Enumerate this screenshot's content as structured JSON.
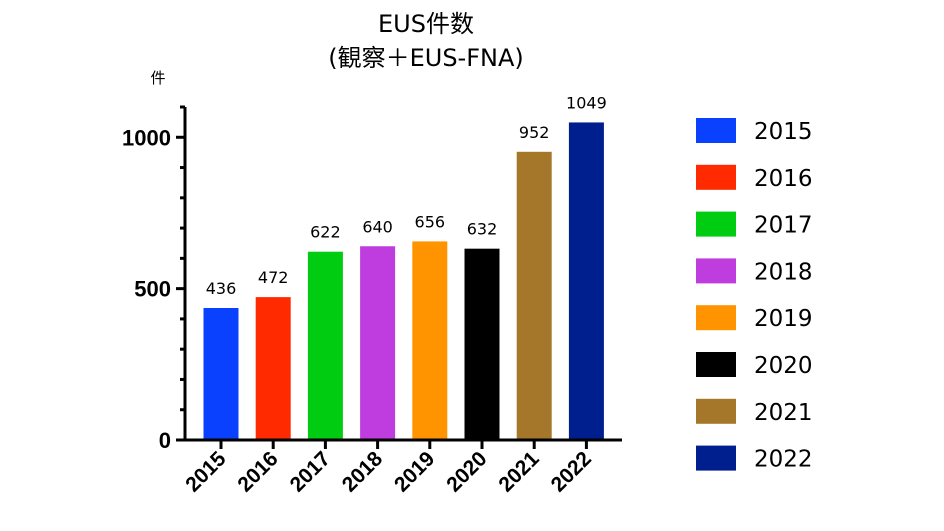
{
  "chart_data": {
    "type": "bar",
    "title_line1": "EUS件数",
    "title_line2": "(観察＋EUS-FNA)",
    "y_unit": "件",
    "categories": [
      "2015",
      "2016",
      "2017",
      "2018",
      "2019",
      "2020",
      "2021",
      "2022"
    ],
    "values": [
      436,
      472,
      622,
      640,
      656,
      632,
      952,
      1049
    ],
    "colors": [
      "#0a41ff",
      "#ff2a00",
      "#00cc11",
      "#bf3ddf",
      "#ff9300",
      "#000000",
      "#a5772b",
      "#001f8e"
    ],
    "ylim": [
      0,
      1100
    ],
    "yticks": [
      0,
      500,
      1000
    ],
    "legend_position": "right",
    "grid": false
  }
}
